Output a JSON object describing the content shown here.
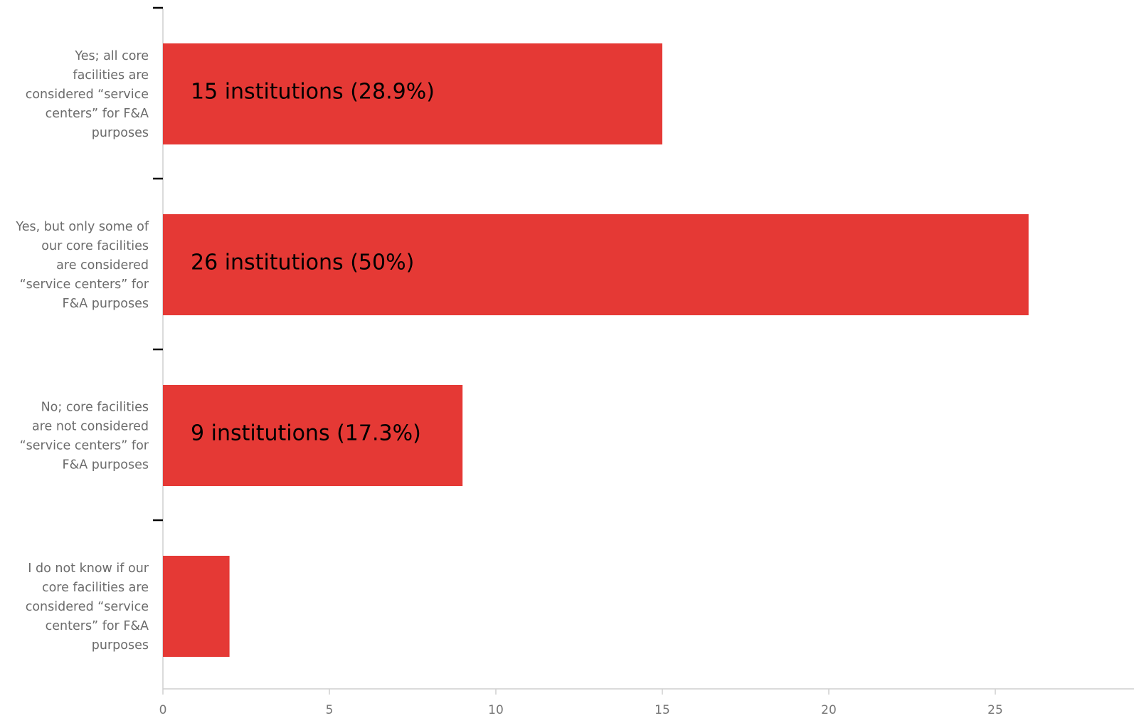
{
  "chart_data": {
    "type": "bar",
    "orientation": "horizontal",
    "categories": [
      [
        "Yes; all core",
        "facilities are",
        "considered “service",
        "centers” for F&A",
        "purposes"
      ],
      [
        "Yes, but only some of",
        "our core facilities",
        "are considered",
        "“service centers” for",
        "F&A purposes"
      ],
      [
        "No; core facilities",
        "are not considered",
        "“service centers” for",
        "F&A purposes"
      ],
      [
        "I do not know if our",
        "core facilities are",
        "considered “service",
        "centers” for F&A",
        "purposes"
      ]
    ],
    "values": [
      15,
      26,
      9,
      2
    ],
    "data_labels": [
      "15 institutions (28.9%)",
      "26 institutions (50%)",
      "9 institutions (17.3%)",
      ""
    ],
    "xlim": [
      0,
      28
    ],
    "xticks": [
      0,
      5,
      10,
      15,
      20,
      25
    ],
    "bar_color": "#e53935",
    "grid": false,
    "legend": "none"
  }
}
